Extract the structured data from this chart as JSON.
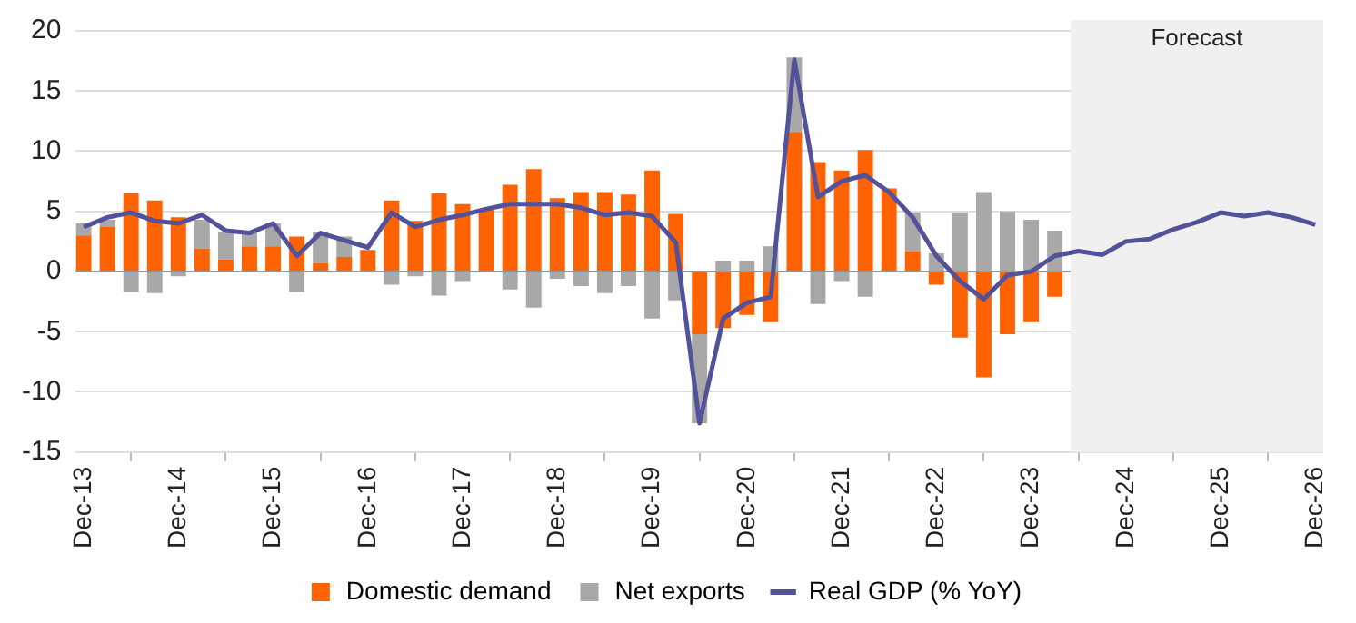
{
  "chart_data": {
    "type": "bar",
    "stacked": true,
    "x": [
      "2013-12",
      "2014-03",
      "2014-06",
      "2014-09",
      "2014-12",
      "2015-03",
      "2015-06",
      "2015-09",
      "2015-12",
      "2016-03",
      "2016-06",
      "2016-09",
      "2016-12",
      "2017-03",
      "2017-06",
      "2017-09",
      "2017-12",
      "2018-03",
      "2018-06",
      "2018-09",
      "2018-12",
      "2019-03",
      "2019-06",
      "2019-09",
      "2019-12",
      "2020-03",
      "2020-06",
      "2020-09",
      "2020-12",
      "2021-03",
      "2021-06",
      "2021-09",
      "2021-12",
      "2022-03",
      "2022-06",
      "2022-09",
      "2022-12",
      "2023-03",
      "2023-06",
      "2023-09",
      "2023-12",
      "2024-03",
      "2024-06",
      "2024-09",
      "2024-12",
      "2025-03",
      "2025-06",
      "2025-09",
      "2025-12",
      "2026-03",
      "2026-06",
      "2026-09",
      "2026-12"
    ],
    "series": [
      {
        "name": "Domestic demand",
        "color": "#ff6200",
        "values": [
          3.0,
          3.7,
          6.5,
          5.9,
          4.5,
          1.9,
          1.0,
          2.1,
          2.1,
          2.9,
          0.7,
          1.2,
          1.8,
          5.9,
          4.2,
          6.5,
          5.6,
          5.2,
          7.2,
          8.5,
          6.1,
          6.6,
          6.6,
          6.4,
          8.4,
          4.8,
          -5.2,
          -4.7,
          -3.6,
          -4.2,
          11.6,
          9.1,
          8.4,
          10.1,
          6.9,
          1.7,
          -1.1,
          -5.5,
          -8.8,
          -5.2,
          -4.2,
          -2.1,
          null,
          null,
          null,
          null,
          null,
          null,
          null,
          null,
          null,
          null,
          null
        ]
      },
      {
        "name": "Net exports",
        "color": "#a8a8a8",
        "values": [
          1.0,
          0.6,
          -1.7,
          -1.8,
          -0.4,
          2.4,
          2.3,
          1.2,
          1.9,
          -1.7,
          2.6,
          1.7,
          null,
          -1.1,
          -0.4,
          -2.0,
          -0.8,
          null,
          -1.5,
          -3.0,
          -0.6,
          -1.2,
          -1.8,
          -1.2,
          -3.9,
          -2.4,
          -7.4,
          0.9,
          0.9,
          2.1,
          6.2,
          -2.7,
          -0.8,
          -2.1,
          null,
          3.2,
          1.5,
          4.9,
          6.6,
          5.0,
          4.3,
          3.4,
          null,
          null,
          null,
          null,
          null,
          null,
          null,
          null,
          null,
          null,
          null
        ]
      },
      {
        "name": "Real GDP (% YoY)",
        "type": "line",
        "color": "#525199",
        "values": [
          3.7,
          4.5,
          4.9,
          4.2,
          4.0,
          4.7,
          3.4,
          3.2,
          4.0,
          1.3,
          3.2,
          2.6,
          2.0,
          4.9,
          3.7,
          4.3,
          4.7,
          5.2,
          5.6,
          5.6,
          5.6,
          5.3,
          4.7,
          4.9,
          4.6,
          2.4,
          -12.6,
          -3.9,
          -2.6,
          -2.1,
          17.6,
          6.2,
          7.5,
          8.0,
          6.6,
          4.5,
          1.3,
          -0.8,
          -2.3,
          -0.3,
          0.0,
          1.3,
          1.7,
          1.4,
          2.5,
          2.7,
          3.5,
          4.1,
          4.9,
          4.6,
          4.9,
          4.5,
          3.9
        ]
      }
    ],
    "xlim": [
      "2013-11",
      "2027-01"
    ],
    "xticks": [
      {
        "value": "2013-12",
        "label": "Dec-13"
      },
      {
        "value": "2014-12",
        "label": "Dec-14"
      },
      {
        "value": "2015-12",
        "label": "Dec-15"
      },
      {
        "value": "2016-12",
        "label": "Dec-16"
      },
      {
        "value": "2017-12",
        "label": "Dec-17"
      },
      {
        "value": "2018-12",
        "label": "Dec-18"
      },
      {
        "value": "2019-12",
        "label": "Dec-19"
      },
      {
        "value": "2020-12",
        "label": "Dec-20"
      },
      {
        "value": "2021-12",
        "label": "Dec-21"
      },
      {
        "value": "2022-12",
        "label": "Dec-22"
      },
      {
        "value": "2023-12",
        "label": "Dec-23"
      },
      {
        "value": "2024-12",
        "label": "Dec-24"
      },
      {
        "value": "2025-12",
        "label": "Dec-25"
      },
      {
        "value": "2026-12",
        "label": "Dec-26"
      }
    ],
    "ylim": [
      -15,
      20
    ],
    "yticks": [
      -15,
      -10,
      -5,
      0,
      5,
      10,
      15,
      20
    ],
    "bands": [
      {
        "axis": "x",
        "from": "2024-05",
        "to": "2027-01",
        "label": "Forecast",
        "color": "#f0f0f0"
      }
    ],
    "grid": "y",
    "legend": "bottom",
    "marker": "none"
  }
}
